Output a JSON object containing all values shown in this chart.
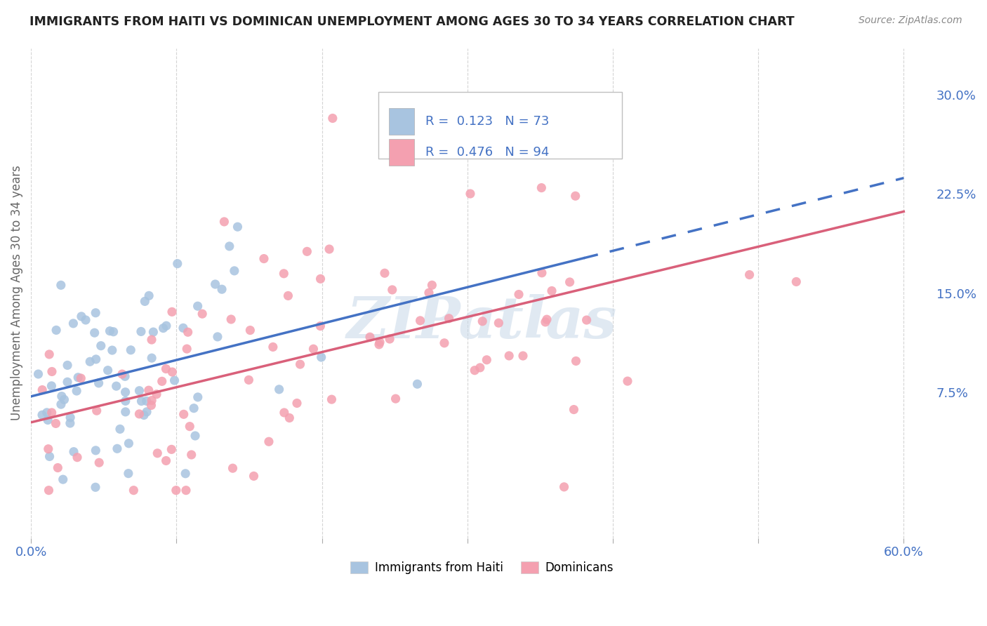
{
  "title": "IMMIGRANTS FROM HAITI VS DOMINICAN UNEMPLOYMENT AMONG AGES 30 TO 34 YEARS CORRELATION CHART",
  "source": "Source: ZipAtlas.com",
  "ylabel": "Unemployment Among Ages 30 to 34 years",
  "xlim": [
    0.0,
    0.62
  ],
  "ylim": [
    -0.035,
    0.335
  ],
  "xtick_vals": [
    0.0,
    0.1,
    0.2,
    0.3,
    0.4,
    0.5,
    0.6
  ],
  "xticklabels": [
    "0.0%",
    "",
    "",
    "",
    "",
    "",
    "60.0%"
  ],
  "ytick_vals": [
    0.0,
    0.075,
    0.15,
    0.225,
    0.3
  ],
  "yticklabels_right": [
    "",
    "7.5%",
    "15.0%",
    "22.5%",
    "30.0%"
  ],
  "haiti_R": "0.123",
  "haiti_N": "73",
  "dom_R": "0.476",
  "dom_N": "94",
  "haiti_color": "#a8c4e0",
  "dom_color": "#f4a0b0",
  "haiti_line_color": "#4472c4",
  "dom_line_color": "#d9607a",
  "legend_label_haiti": "Immigrants from Haiti",
  "legend_label_dom": "Dominicans",
  "watermark": "ZIPatlas",
  "background_color": "#ffffff",
  "grid_color": "#d0d0d0",
  "title_color": "#222222",
  "source_color": "#888888",
  "axis_label_color": "#4472c4",
  "ylabel_color": "#666666",
  "haiti_seed": 42,
  "dom_seed": 7
}
